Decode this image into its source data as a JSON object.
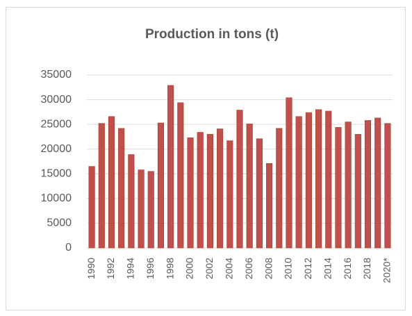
{
  "chart_data": {
    "type": "bar",
    "title": "Production in tons (t)",
    "categories": [
      "1990",
      null,
      "1992",
      null,
      "1994",
      null,
      "1996",
      null,
      "1998",
      null,
      "2000",
      null,
      "2002",
      null,
      "2004",
      null,
      "2006",
      null,
      "2008",
      null,
      "2010",
      null,
      "2012",
      null,
      "2014",
      null,
      "2016",
      null,
      "2018",
      null,
      "2020*"
    ],
    "values": [
      16500,
      25200,
      26600,
      24200,
      18900,
      15800,
      15500,
      25300,
      32900,
      29400,
      22300,
      23400,
      23000,
      24100,
      21700,
      27900,
      25100,
      22100,
      17100,
      24200,
      30400,
      26600,
      27400,
      28000,
      27700,
      24400,
      25500,
      23000,
      25800,
      26300,
      25200
    ],
    "color": "#c0504d",
    "ylim": [
      0,
      35000
    ],
    "yticks": [
      0,
      5000,
      10000,
      15000,
      20000,
      25000,
      30000,
      35000
    ],
    "grid": true
  }
}
